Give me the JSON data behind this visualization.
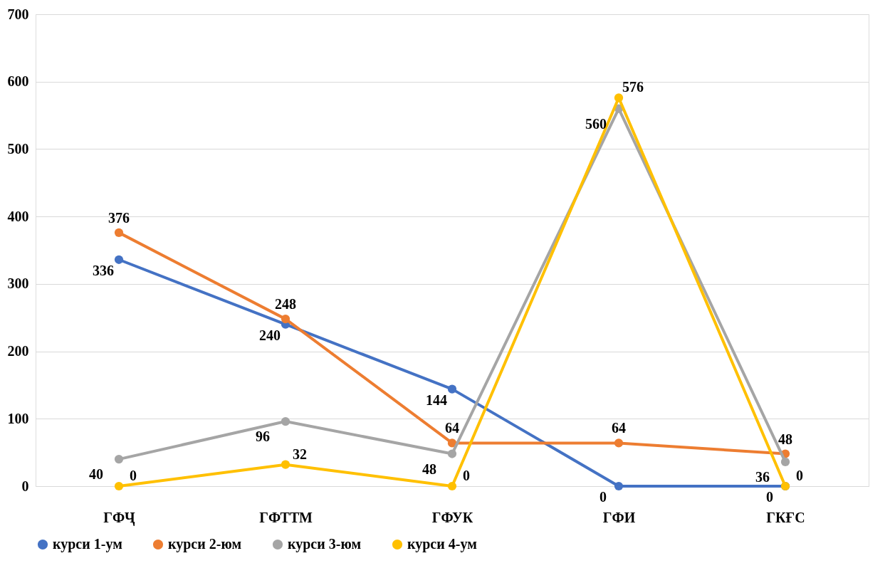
{
  "chart_data": {
    "type": "line",
    "categories": [
      "ГФҶ",
      "ГФТТМ",
      "ГФУК",
      "ГФИ",
      "ГКҒС"
    ],
    "series": [
      {
        "name": "курси 1-ум",
        "color": "#4472c4",
        "values": [
          336,
          240,
          144,
          0,
          0
        ]
      },
      {
        "name": "курси 2-юм",
        "color": "#ed7d31",
        "values": [
          376,
          248,
          64,
          64,
          48
        ]
      },
      {
        "name": "курси 3-юм",
        "color": "#a5a5a5",
        "values": [
          40,
          96,
          48,
          560,
          36
        ]
      },
      {
        "name": "курси 4-ум",
        "color": "#ffc000",
        "values": [
          0,
          32,
          0,
          576,
          0
        ]
      }
    ],
    "ylim": [
      0,
      700
    ],
    "yticks": [
      0,
      100,
      200,
      300,
      400,
      500,
      600,
      700
    ],
    "grid": "y",
    "legend": "bottom",
    "marker": "circle",
    "line_style": "solid",
    "data_labels": true
  }
}
